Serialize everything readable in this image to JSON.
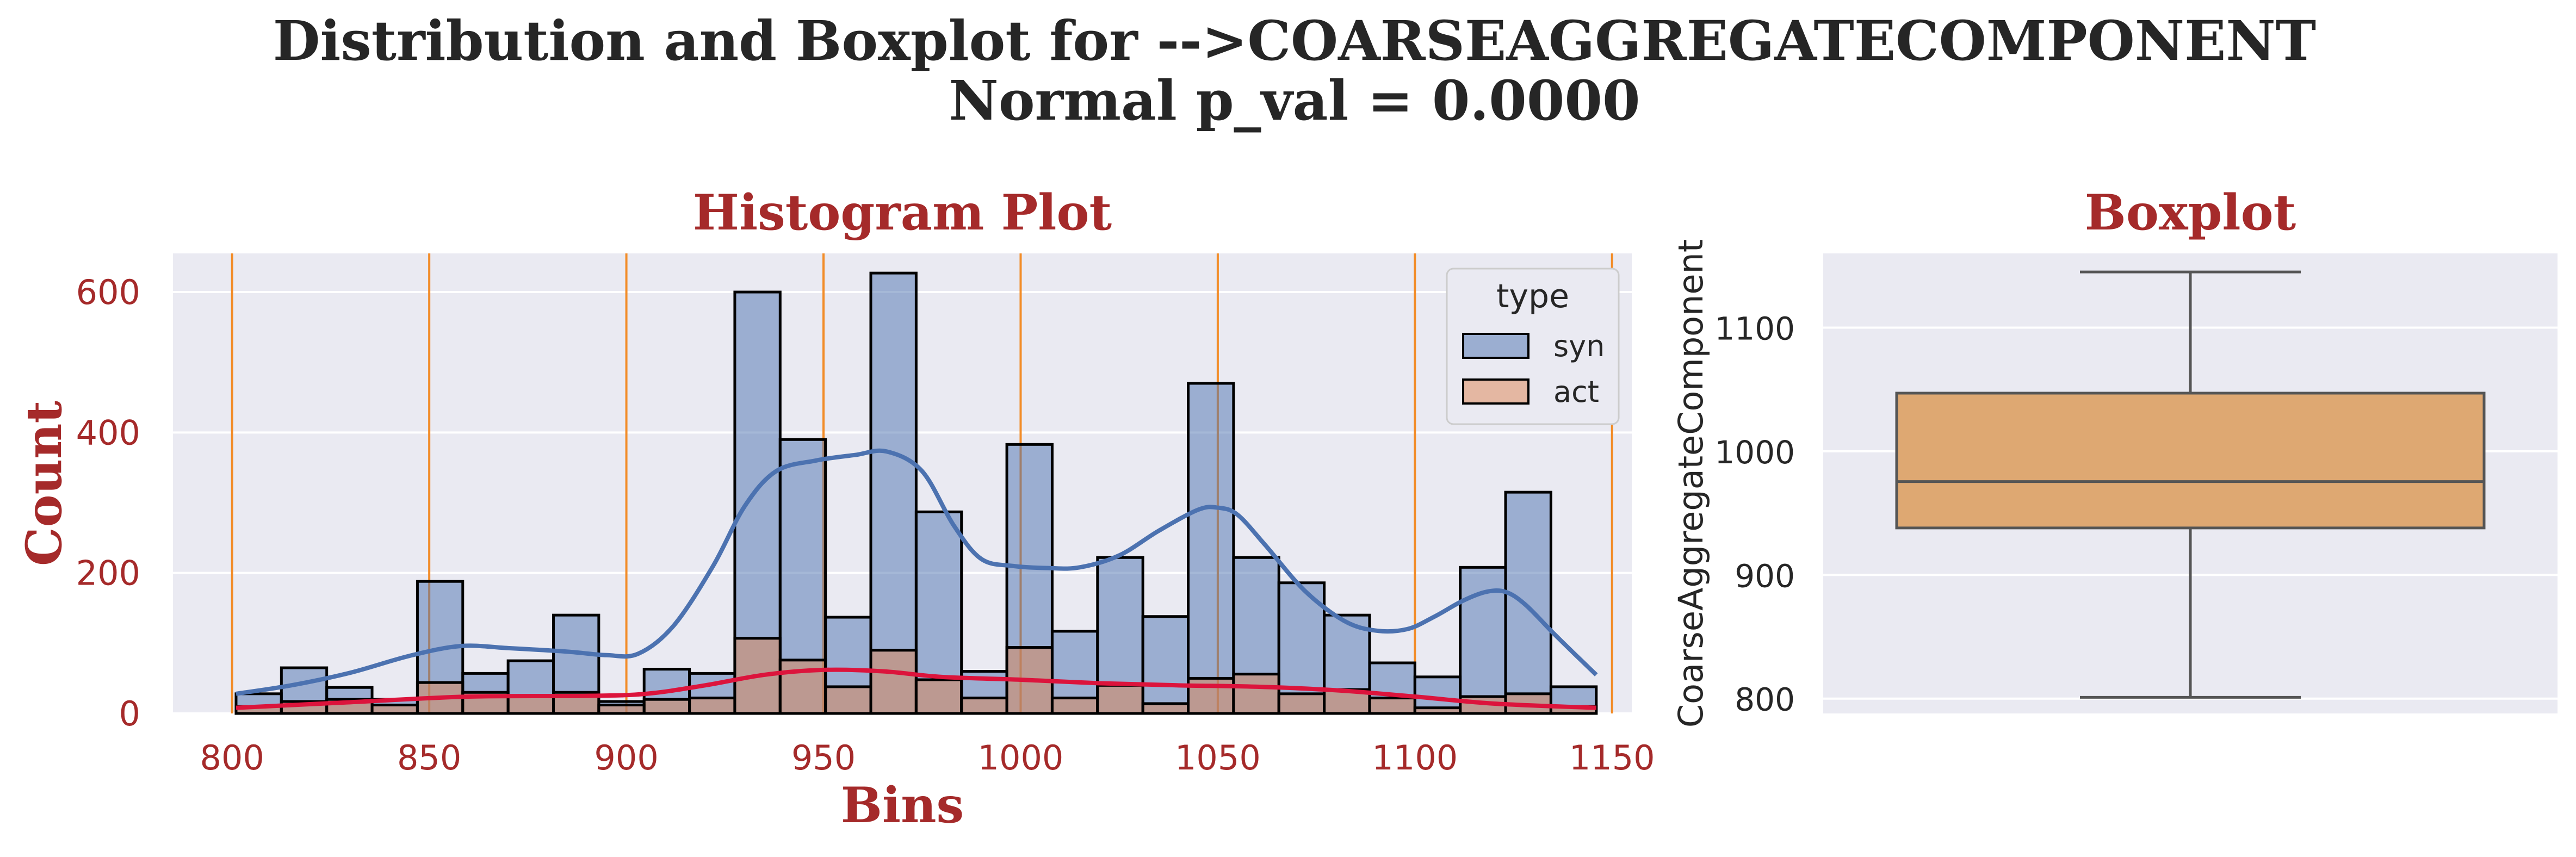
{
  "figure": {
    "title_line1": "Distribution and Boxplot for -->COARSEAGGREGATECOMPONENT",
    "title_line2": "Normal p_val = 0.0000"
  },
  "colors": {
    "panel_bg": "#eaeaf2",
    "syn": "#4c72b0",
    "act": "#dd8452",
    "kde_act": "#dc143c",
    "vline": "#f28c28",
    "box_fill": "#dea872",
    "label_red": "#a52a2a"
  },
  "chart_data": [
    {
      "type": "bar",
      "subtype": "histogram",
      "title": "Histogram Plot",
      "xlabel": "Bins",
      "ylabel": "Count",
      "xlim": [
        785,
        1155
      ],
      "ylim": [
        0,
        655
      ],
      "xticks": [
        800,
        850,
        900,
        950,
        1000,
        1050,
        1100,
        1150
      ],
      "yticks": [
        0,
        200,
        400,
        600
      ],
      "grid": true,
      "legend": {
        "title": "type",
        "entries": [
          "syn",
          "act"
        ],
        "position": "top-right"
      },
      "bin_edges": [
        801.0,
        812.5,
        824.0,
        835.5,
        847.0,
        858.5,
        870.0,
        881.5,
        893.0,
        904.5,
        916.0,
        927.5,
        939.0,
        950.5,
        962.0,
        973.5,
        985.0,
        996.5,
        1008.0,
        1019.5,
        1031.0,
        1042.5,
        1054.0,
        1065.5,
        1077.0,
        1088.5,
        1100.0,
        1111.5,
        1123.0,
        1134.5,
        1146.0
      ],
      "series": [
        {
          "name": "syn",
          "values": [
            28,
            65,
            37,
            20,
            188,
            57,
            75,
            140,
            17,
            63,
            57,
            600,
            390,
            137,
            627,
            287,
            60,
            383,
            117,
            222,
            138,
            470,
            222,
            186,
            140,
            72,
            52,
            208,
            315,
            38
          ]
        },
        {
          "name": "act",
          "values": [
            10,
            17,
            20,
            12,
            44,
            30,
            24,
            30,
            12,
            20,
            22,
            107,
            76,
            38,
            90,
            48,
            22,
            94,
            22,
            40,
            14,
            50,
            56,
            28,
            34,
            22,
            8,
            24,
            28,
            10
          ]
        }
      ],
      "vlines": [
        800,
        850,
        900,
        950,
        1000,
        1050,
        1100,
        1150
      ],
      "kde": [
        {
          "name": "syn",
          "x": [
            801,
            815,
            830,
            845,
            858,
            870,
            885,
            895,
            903,
            912,
            922,
            930,
            938,
            948,
            958,
            966,
            975,
            983,
            990,
            998,
            1007,
            1015,
            1025,
            1035,
            1045,
            1050,
            1055,
            1062,
            1072,
            1082,
            1090,
            1098,
            1105,
            1112,
            1118,
            1123,
            1128,
            1135,
            1141,
            1146
          ],
          "y": [
            28,
            40,
            58,
            82,
            96,
            93,
            88,
            83,
            85,
            125,
            210,
            295,
            345,
            360,
            368,
            373,
            345,
            268,
            220,
            210,
            207,
            208,
            225,
            260,
            290,
            293,
            283,
            240,
            175,
            132,
            118,
            120,
            138,
            160,
            173,
            173,
            155,
            115,
            82,
            55
          ]
        },
        {
          "name": "act",
          "x": [
            801,
            830,
            860,
            890,
            905,
            920,
            935,
            950,
            965,
            980,
            1000,
            1020,
            1040,
            1060,
            1080,
            1100,
            1120,
            1146
          ],
          "y": [
            8,
            16,
            24,
            25,
            28,
            40,
            55,
            62,
            60,
            52,
            48,
            43,
            40,
            38,
            33,
            24,
            14,
            8
          ]
        }
      ]
    },
    {
      "type": "box",
      "title": "Boxplot",
      "ylabel": "CoarseAggregateComponent",
      "ylim": [
        788,
        1160
      ],
      "yticks": [
        800,
        900,
        1000,
        1100
      ],
      "grid": true,
      "stats": {
        "min": 801.0,
        "q1": 938.0,
        "median": 975.5,
        "q3": 1047.0,
        "max": 1145.0
      }
    }
  ]
}
